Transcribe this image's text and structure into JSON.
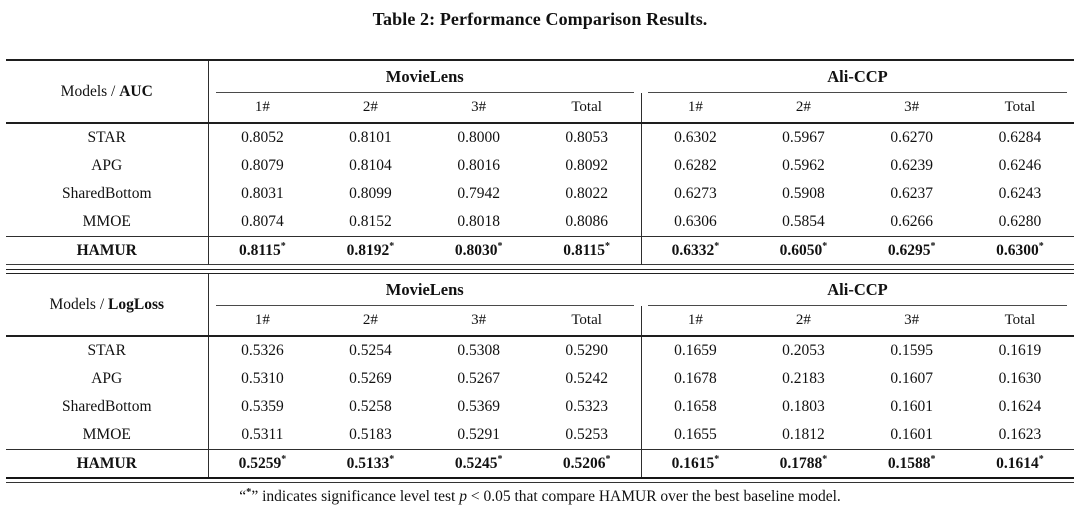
{
  "title": "Table 2: Performance Comparison Results.",
  "tables": [
    {
      "header": {
        "models_prefix": "Models / ",
        "metric": "AUC",
        "datasets": [
          "MovieLens",
          "Ali-CCP"
        ],
        "cols": [
          "1#",
          "2#",
          "3#",
          "Total",
          "1#",
          "2#",
          "3#",
          "Total"
        ]
      },
      "rows": [
        {
          "model": "STAR",
          "values": [
            "0.8052",
            "0.8101",
            "0.8000",
            "0.8053",
            "0.6302",
            "0.5967",
            "0.6270",
            "0.6284"
          ]
        },
        {
          "model": "APG",
          "values": [
            "0.8079",
            "0.8104",
            "0.8016",
            "0.8092",
            "0.6282",
            "0.5962",
            "0.6239",
            "0.6246"
          ]
        },
        {
          "model": "SharedBottom",
          "values": [
            "0.8031",
            "0.8099",
            "0.7942",
            "0.8022",
            "0.6273",
            "0.5908",
            "0.6237",
            "0.6243"
          ]
        },
        {
          "model": "MMOE",
          "values": [
            "0.8074",
            "0.8152",
            "0.8018",
            "0.8086",
            "0.6306",
            "0.5854",
            "0.6266",
            "0.6280"
          ]
        }
      ],
      "best": {
        "model": "HAMUR",
        "star": "*",
        "values": [
          "0.8115",
          "0.8192",
          "0.8030",
          "0.8115",
          "0.6332",
          "0.6050",
          "0.6295",
          "0.6300"
        ]
      }
    },
    {
      "header": {
        "models_prefix": "Models / ",
        "metric": "LogLoss",
        "datasets": [
          "MovieLens",
          "Ali-CCP"
        ],
        "cols": [
          "1#",
          "2#",
          "3#",
          "Total",
          "1#",
          "2#",
          "3#",
          "Total"
        ]
      },
      "rows": [
        {
          "model": "STAR",
          "values": [
            "0.5326",
            "0.5254",
            "0.5308",
            "0.5290",
            "0.1659",
            "0.2053",
            "0.1595",
            "0.1619"
          ]
        },
        {
          "model": "APG",
          "values": [
            "0.5310",
            "0.5269",
            "0.5267",
            "0.5242",
            "0.1678",
            "0.2183",
            "0.1607",
            "0.1630"
          ]
        },
        {
          "model": "SharedBottom",
          "values": [
            "0.5359",
            "0.5258",
            "0.5369",
            "0.5323",
            "0.1658",
            "0.1803",
            "0.1601",
            "0.1624"
          ]
        },
        {
          "model": "MMOE",
          "values": [
            "0.5311",
            "0.5183",
            "0.5291",
            "0.5253",
            "0.1655",
            "0.1812",
            "0.1601",
            "0.1623"
          ]
        }
      ],
      "best": {
        "model": "HAMUR",
        "star": "*",
        "values": [
          "0.5259",
          "0.5133",
          "0.5245",
          "0.5206",
          "0.1615",
          "0.1788",
          "0.1588",
          "0.1614"
        ]
      }
    }
  ],
  "footnote": {
    "quote_open": "“",
    "star": "*",
    "quote_close": "”",
    "text_before_p": " indicates significance level test ",
    "p_symbol": "p",
    "text_after_p": " < 0.05 that compare HAMUR over the best baseline model."
  }
}
